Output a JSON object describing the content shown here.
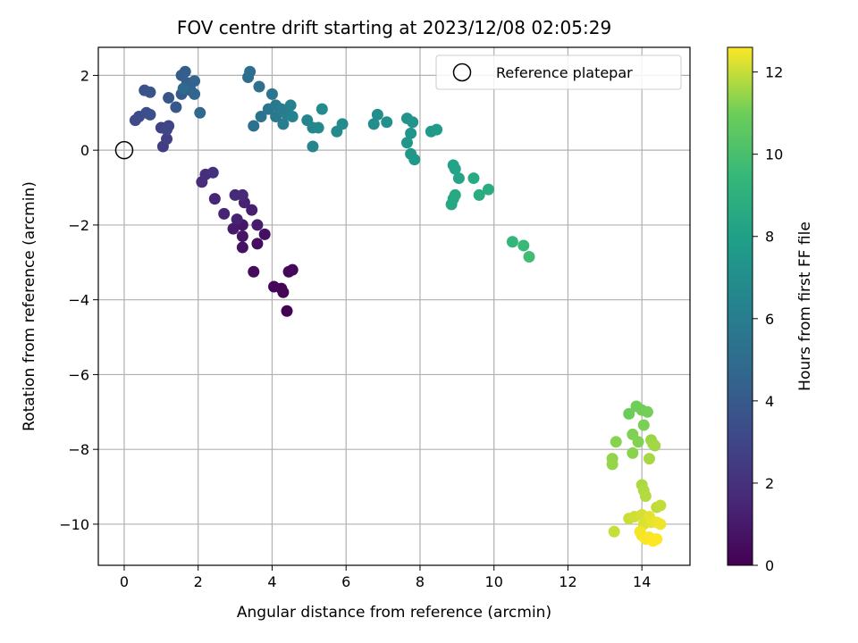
{
  "chart_data": {
    "type": "scatter",
    "title": "FOV centre drift starting at 2023/12/08 02:05:29",
    "xlabel": "Angular distance from reference (arcmin)",
    "ylabel": "Rotation from reference (arcmin)",
    "xlim": [
      -0.7,
      15.3
    ],
    "ylim": [
      -11.1,
      2.75
    ],
    "xticks": [
      0,
      2,
      4,
      6,
      8,
      10,
      12,
      14
    ],
    "yticks": [
      2,
      0,
      -2,
      -4,
      -6,
      -8,
      -10
    ],
    "grid": true,
    "legend": {
      "position": "top-right",
      "entries": [
        "Reference platepar"
      ]
    },
    "reference_point": {
      "x": 0,
      "y": 0,
      "marker": "open-circle"
    },
    "colorbar": {
      "label": "Hours from first FF file",
      "range": [
        0,
        12.6
      ],
      "ticks": [
        0,
        2,
        4,
        6,
        8,
        10,
        12
      ],
      "colormap": "viridis"
    },
    "series": [
      {
        "color_by": "hours",
        "points": [
          [
            4.4,
            -4.3,
            0.0
          ],
          [
            4.3,
            -3.8,
            0.1
          ],
          [
            4.25,
            -3.7,
            0.15
          ],
          [
            4.05,
            -3.65,
            0.2
          ],
          [
            4.55,
            -3.2,
            0.25
          ],
          [
            4.45,
            -3.25,
            0.3
          ],
          [
            3.5,
            -3.25,
            0.4
          ],
          [
            3.6,
            -2.5,
            0.5
          ],
          [
            3.8,
            -2.25,
            0.6
          ],
          [
            3.2,
            -2.6,
            0.7
          ],
          [
            3.2,
            -2.3,
            0.8
          ],
          [
            3.2,
            -2.0,
            0.9
          ],
          [
            2.95,
            -2.1,
            1.0
          ],
          [
            3.6,
            -2.0,
            1.1
          ],
          [
            3.45,
            -1.6,
            1.2
          ],
          [
            3.25,
            -1.4,
            1.3
          ],
          [
            3.05,
            -1.85,
            1.35
          ],
          [
            2.7,
            -1.7,
            1.4
          ],
          [
            2.45,
            -1.3,
            1.5
          ],
          [
            3.2,
            -1.2,
            1.6
          ],
          [
            3.0,
            -1.2,
            1.7
          ],
          [
            2.1,
            -0.85,
            1.8
          ],
          [
            2.2,
            -0.65,
            1.9
          ],
          [
            2.4,
            -0.6,
            2.0
          ],
          [
            1.05,
            0.1,
            2.6
          ],
          [
            1.15,
            0.3,
            2.7
          ],
          [
            1.0,
            0.6,
            2.8
          ],
          [
            1.2,
            0.65,
            2.9
          ],
          [
            1.15,
            0.55,
            3.0
          ],
          [
            0.3,
            0.8,
            3.2
          ],
          [
            0.4,
            0.9,
            3.3
          ],
          [
            0.6,
            1.0,
            3.4
          ],
          [
            0.7,
            0.95,
            3.5
          ],
          [
            0.55,
            1.6,
            3.6
          ],
          [
            0.7,
            1.55,
            3.7
          ],
          [
            1.2,
            1.4,
            3.8
          ],
          [
            1.4,
            1.15,
            3.9
          ],
          [
            1.55,
            1.5,
            4.0
          ],
          [
            1.55,
            2.0,
            4.1
          ],
          [
            1.65,
            2.1,
            4.2
          ],
          [
            1.7,
            1.8,
            4.3
          ],
          [
            1.8,
            1.6,
            4.4
          ],
          [
            1.9,
            1.85,
            4.5
          ],
          [
            1.9,
            1.5,
            4.6
          ],
          [
            2.05,
            1.0,
            4.7
          ],
          [
            1.6,
            1.65,
            4.8
          ],
          [
            3.35,
            1.95,
            5.0
          ],
          [
            3.4,
            2.1,
            5.1
          ],
          [
            3.65,
            1.7,
            5.2
          ],
          [
            3.5,
            0.65,
            5.3
          ],
          [
            3.7,
            0.9,
            5.4
          ],
          [
            3.9,
            1.1,
            5.5
          ],
          [
            4.0,
            1.5,
            5.6
          ],
          [
            4.1,
            1.2,
            5.7
          ],
          [
            4.1,
            0.9,
            5.8
          ],
          [
            4.25,
            1.1,
            5.9
          ],
          [
            4.3,
            0.7,
            6.0
          ],
          [
            4.4,
            0.95,
            6.1
          ],
          [
            4.5,
            1.2,
            6.2
          ],
          [
            4.55,
            0.9,
            6.3
          ],
          [
            4.95,
            0.8,
            6.4
          ],
          [
            5.1,
            0.6,
            6.5
          ],
          [
            5.1,
            0.1,
            6.6
          ],
          [
            5.25,
            0.6,
            6.7
          ],
          [
            5.35,
            1.1,
            6.75
          ],
          [
            5.75,
            0.5,
            6.8
          ],
          [
            5.9,
            0.7,
            6.85
          ],
          [
            6.75,
            0.7,
            6.9
          ],
          [
            6.85,
            0.95,
            7.0
          ],
          [
            7.1,
            0.75,
            7.1
          ],
          [
            7.65,
            0.85,
            7.2
          ],
          [
            7.8,
            0.75,
            7.3
          ],
          [
            7.75,
            0.45,
            7.35
          ],
          [
            7.65,
            0.2,
            7.4
          ],
          [
            7.75,
            -0.1,
            7.5
          ],
          [
            7.85,
            -0.25,
            7.6
          ],
          [
            8.3,
            0.5,
            7.7
          ],
          [
            8.45,
            0.55,
            7.8
          ],
          [
            8.9,
            -0.4,
            8.1
          ],
          [
            8.95,
            -0.5,
            8.2
          ],
          [
            9.05,
            -0.75,
            8.3
          ],
          [
            8.9,
            -1.3,
            8.4
          ],
          [
            8.85,
            -1.45,
            8.45
          ],
          [
            8.95,
            -1.2,
            8.5
          ],
          [
            9.45,
            -0.75,
            8.6
          ],
          [
            9.6,
            -1.2,
            8.7
          ],
          [
            9.85,
            -1.05,
            8.8
          ],
          [
            10.5,
            -2.45,
            9.4
          ],
          [
            10.8,
            -2.55,
            9.6
          ],
          [
            10.95,
            -2.85,
            9.8
          ],
          [
            13.65,
            -7.05,
            10.9
          ],
          [
            13.85,
            -6.85,
            11.0
          ],
          [
            14.0,
            -6.95,
            11.05
          ],
          [
            14.15,
            -7.0,
            11.1
          ],
          [
            14.05,
            -7.35,
            11.15
          ],
          [
            13.75,
            -7.6,
            11.2
          ],
          [
            13.9,
            -7.8,
            11.25
          ],
          [
            13.3,
            -7.8,
            11.3
          ],
          [
            13.75,
            -8.1,
            11.35
          ],
          [
            13.2,
            -8.25,
            11.4
          ],
          [
            13.2,
            -8.4,
            11.45
          ],
          [
            14.25,
            -7.75,
            11.5
          ],
          [
            14.3,
            -7.85,
            11.55
          ],
          [
            14.35,
            -7.9,
            11.6
          ],
          [
            14.2,
            -8.25,
            11.65
          ],
          [
            14.0,
            -8.95,
            11.7
          ],
          [
            14.05,
            -9.1,
            11.75
          ],
          [
            14.1,
            -9.25,
            11.8
          ],
          [
            14.4,
            -9.55,
            11.9
          ],
          [
            14.5,
            -9.5,
            11.95
          ],
          [
            13.25,
            -10.2,
            12.0
          ],
          [
            13.65,
            -9.85,
            12.05
          ],
          [
            13.8,
            -9.8,
            12.1
          ],
          [
            14.0,
            -9.75,
            12.15
          ],
          [
            14.05,
            -10.0,
            12.2
          ],
          [
            14.2,
            -9.8,
            12.3
          ],
          [
            14.25,
            -9.95,
            12.35
          ],
          [
            14.4,
            -9.95,
            12.4
          ],
          [
            14.5,
            -10.0,
            12.45
          ],
          [
            13.95,
            -10.2,
            12.5
          ],
          [
            14.0,
            -10.3,
            12.5
          ],
          [
            14.1,
            -10.4,
            12.55
          ],
          [
            14.2,
            -10.35,
            12.55
          ],
          [
            14.3,
            -10.45,
            12.6
          ],
          [
            14.4,
            -10.4,
            12.6
          ]
        ]
      }
    ]
  }
}
